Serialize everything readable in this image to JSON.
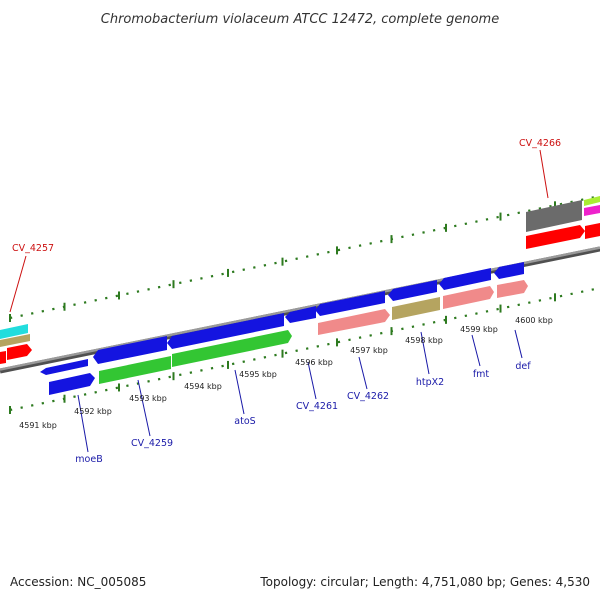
{
  "title": "Chromobacterium violaceum ATCC 12472, complete genome",
  "footer": {
    "accession": "Accession: NC_005085",
    "topology": "Topology: circular; Length: 4,751,080 bp; Genes: 4,530"
  },
  "colors": {
    "backbone": "#808080",
    "tick": "#2d7a1f",
    "label_blue": "#1a1aa8",
    "label_red": "#cc1111",
    "gene_blue": "#1414e0",
    "gene_green": "#33c633",
    "gene_pink": "#f08a8a",
    "gene_olive": "#b5a460",
    "gene_gray": "#6b6b6b",
    "gene_red": "#ff0000",
    "gene_cyan": "#22dddd",
    "gene_yellowgreen": "#aaee33",
    "gene_magenta": "#ee22cc"
  },
  "ticks": [
    {
      "label": "4591 kbp"
    },
    {
      "label": "4592 kbp"
    },
    {
      "label": "4593 kbp"
    },
    {
      "label": "4594 kbp"
    },
    {
      "label": "4595 kbp"
    },
    {
      "label": "4596 kbp"
    },
    {
      "label": "4597 kbp"
    },
    {
      "label": "4598 kbp"
    },
    {
      "label": "4599 kbp"
    },
    {
      "label": "4600 kbp"
    }
  ],
  "genes": [
    {
      "name": "moeB",
      "color": "label_blue"
    },
    {
      "name": "CV_4259",
      "color": "label_blue"
    },
    {
      "name": "atoS",
      "color": "label_blue"
    },
    {
      "name": "CV_4261",
      "color": "label_blue"
    },
    {
      "name": "CV_4262",
      "color": "label_blue"
    },
    {
      "name": "htpX2",
      "color": "label_blue"
    },
    {
      "name": "fmt",
      "color": "label_blue"
    },
    {
      "name": "def",
      "color": "label_blue"
    },
    {
      "name": "CV_4257",
      "color": "label_red"
    },
    {
      "name": "CV_4266",
      "color": "label_red"
    }
  ]
}
